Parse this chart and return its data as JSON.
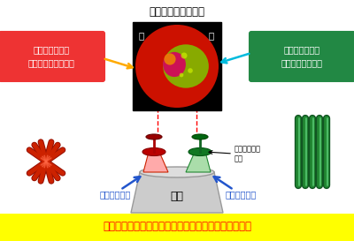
{
  "title": "染色した毛髪の断面",
  "bottom_text": "「うねり」をもつ毛髪は、２種類の細胞が偏って分布",
  "left_box_text": "ミクロな繊維が\nねじれて並んだ細胞",
  "right_box_text": "ミクロな繊維が\n並行に並んだ細胞",
  "label_outside": "うねりの外側",
  "label_inside": "うねりの内側",
  "label_hair": "毛髪",
  "label_cortex": "コルテックス\n細胞",
  "label_outside_char": "外",
  "label_inside_char": "内",
  "bg_color": "#ffffff",
  "bottom_bg": "#ffff00",
  "bottom_text_color": "#ff0000",
  "left_box_bg": "#ee3333",
  "right_box_bg": "#228844",
  "left_box_text_color": "#ffffff",
  "right_box_text_color": "#ffffff",
  "arrow_orange": "#ffaa00",
  "arrow_cyan": "#00bbdd",
  "arrow_blue": "#2255cc",
  "dashed_red": "#ff0000",
  "fiber_red": "#cc2200",
  "fiber_green": "#228833"
}
